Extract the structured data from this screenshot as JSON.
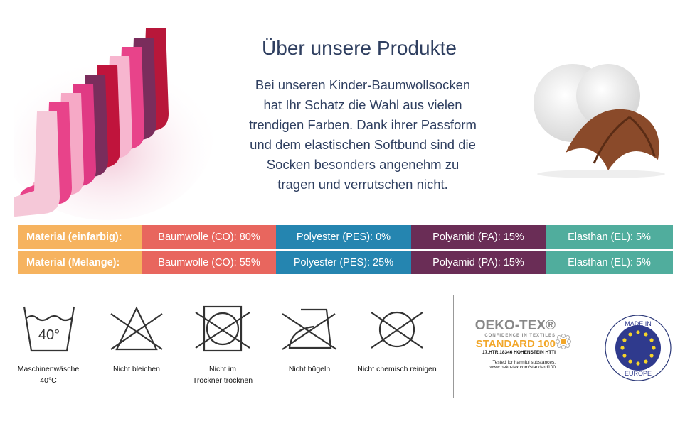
{
  "header": {
    "title": "Über unsere Produkte"
  },
  "description": {
    "lines": [
      "Bei unseren Kinder-Baumwollsocken",
      "hat Ihr Schatz die Wahl aus vielen",
      "trendigen Farben. Dank ihrer Passform",
      "und dem elastischen Softbund sind die",
      "Socken besonders angenehm zu",
      "tragen und verrutschen nicht."
    ]
  },
  "materials": {
    "colors": {
      "label": "#f6b35f",
      "cotton": "#e8665e",
      "polyester": "#2585b0",
      "polyamid": "#6a2d56",
      "elasthan": "#50ad9d"
    },
    "rows": [
      {
        "label": "Material (einfarbig):",
        "cotton": "Baumwolle (CO): 80%",
        "polyester": "Polyester (PES): 0%",
        "polyamid": "Polyamid (PA): 15%",
        "elasthan": "Elasthan (EL): 5%"
      },
      {
        "label": "Material (Melange):",
        "cotton": "Baumwolle (CO): 55%",
        "polyester": "Polyester (PES): 25%",
        "polyamid": "Polyamid (PA): 15%",
        "elasthan": "Elasthan (EL): 5%"
      }
    ]
  },
  "care": [
    {
      "icon": "wash-40-icon",
      "line1": "Maschinenwäsche",
      "line2": "40°C",
      "symbol": "40°"
    },
    {
      "icon": "no-bleach-icon",
      "line1": "Nicht bleichen",
      "line2": ""
    },
    {
      "icon": "no-tumble-dry-icon",
      "line1": "Nicht im",
      "line2": "Trockner trocknen"
    },
    {
      "icon": "no-iron-icon",
      "line1": "Nicht bügeln",
      "line2": ""
    },
    {
      "icon": "no-dry-clean-icon",
      "line1": "Nicht chemisch reinigen",
      "line2": ""
    }
  ],
  "oekotex": {
    "brand": "OEKO-TEX®",
    "tagline": "CONFIDENCE IN TEXTILES",
    "standard": "STANDARD 100",
    "cert": "17.HTR.18346 HOHENSTEIN HTTI",
    "tested": "Tested for harmful substances.",
    "url": "www.oeko-tex.com/standard100"
  },
  "made_in": {
    "top": "MADE IN",
    "bottom": "EUROPE"
  }
}
